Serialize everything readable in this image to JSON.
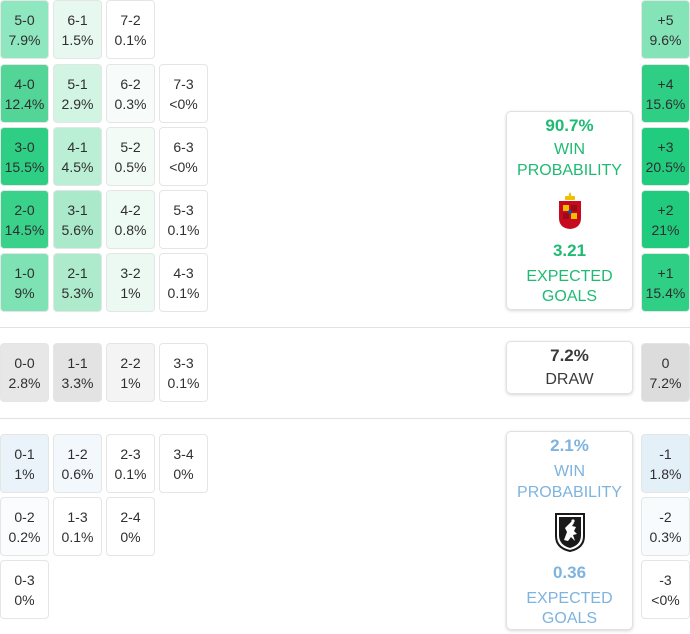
{
  "scorelines": {
    "home_wins": [
      {
        "score": "5-0",
        "prob": "7.9%",
        "bg": "#8ee7bf"
      },
      {
        "score": "6-1",
        "prob": "1.5%",
        "bg": "#e6f8ef"
      },
      {
        "score": "7-2",
        "prob": "0.1%",
        "bg": "#ffffff"
      },
      {
        "score": "4-0",
        "prob": "12.4%",
        "bg": "#52d597"
      },
      {
        "score": "5-1",
        "prob": "2.9%",
        "bg": "#d2f4e3"
      },
      {
        "score": "6-2",
        "prob": "0.3%",
        "bg": "#f7fcfa"
      },
      {
        "score": "7-3",
        "prob": "<0%",
        "bg": "#ffffff"
      },
      {
        "score": "3-0",
        "prob": "15.5%",
        "bg": "#2ecf85"
      },
      {
        "score": "4-1",
        "prob": "4.5%",
        "bg": "#baeed5"
      },
      {
        "score": "5-2",
        "prob": "0.5%",
        "bg": "#f3fbf7"
      },
      {
        "score": "6-3",
        "prob": "<0%",
        "bg": "#ffffff"
      },
      {
        "score": "2-0",
        "prob": "14.5%",
        "bg": "#3ad18b"
      },
      {
        "score": "3-1",
        "prob": "5.6%",
        "bg": "#aaeacb"
      },
      {
        "score": "4-2",
        "prob": "0.8%",
        "bg": "#eefaf4"
      },
      {
        "score": "5-3",
        "prob": "0.1%",
        "bg": "#ffffff"
      },
      {
        "score": "1-0",
        "prob": "9%",
        "bg": "#7fe2b4"
      },
      {
        "score": "2-1",
        "prob": "5.3%",
        "bg": "#aeebcd"
      },
      {
        "score": "3-2",
        "prob": "1%",
        "bg": "#ebf9f2"
      },
      {
        "score": "4-3",
        "prob": "0.1%",
        "bg": "#ffffff"
      }
    ],
    "draws": [
      {
        "score": "0-0",
        "prob": "2.8%",
        "bg": "#e7e7e7"
      },
      {
        "score": "1-1",
        "prob": "3.3%",
        "bg": "#e3e3e3"
      },
      {
        "score": "2-2",
        "prob": "1%",
        "bg": "#f4f4f4"
      },
      {
        "score": "3-3",
        "prob": "0.1%",
        "bg": "#ffffff"
      }
    ],
    "away_wins": [
      {
        "score": "0-1",
        "prob": "1%",
        "bg": "#eaf3fa"
      },
      {
        "score": "1-2",
        "prob": "0.6%",
        "bg": "#f3f8fc"
      },
      {
        "score": "2-3",
        "prob": "0.1%",
        "bg": "#ffffff"
      },
      {
        "score": "3-4",
        "prob": "0%",
        "bg": "#ffffff"
      },
      {
        "score": "0-2",
        "prob": "0.2%",
        "bg": "#fafcfe"
      },
      {
        "score": "1-3",
        "prob": "0.1%",
        "bg": "#ffffff"
      },
      {
        "score": "2-4",
        "prob": "0%",
        "bg": "#ffffff"
      },
      {
        "score": "0-3",
        "prob": "0%",
        "bg": "#ffffff"
      }
    ]
  },
  "margins": [
    {
      "margin": "+5",
      "prob": "9.6%",
      "bg": "#84e4b8"
    },
    {
      "margin": "+4",
      "prob": "15.6%",
      "bg": "#2ecf85"
    },
    {
      "margin": "+3",
      "prob": "20.5%",
      "bg": "#22cc7e"
    },
    {
      "margin": "+2",
      "prob": "21%",
      "bg": "#20cb7d"
    },
    {
      "margin": "+1",
      "prob": "15.4%",
      "bg": "#2fcf86"
    },
    {
      "margin": "0",
      "prob": "7.2%",
      "bg": "#dcdcdc"
    },
    {
      "margin": "-1",
      "prob": "1.8%",
      "bg": "#e4f0f8"
    },
    {
      "margin": "-2",
      "prob": "0.3%",
      "bg": "#f8fbfd"
    },
    {
      "margin": "-3",
      "prob": "<0%",
      "bg": "#ffffff"
    }
  ],
  "home_card": {
    "win_pct": "90.7%",
    "win_line1": "WIN",
    "win_line2": "PROBABILITY",
    "xg": "3.21",
    "xg_line1": "EXPECTED",
    "xg_line2": "GOALS",
    "crest_icon": "spain-crest-icon"
  },
  "draw_card": {
    "pct": "7.2%",
    "label": "DRAW"
  },
  "away_card": {
    "win_pct": "2.1%",
    "win_line1": "WIN",
    "win_line2": "PROBABILITY",
    "xg": "0.36",
    "xg_line1": "EXPECTED",
    "xg_line2": "GOALS",
    "crest_icon": "georgia-crest-icon"
  },
  "colors": {
    "home_accent": "#1fba73",
    "away_accent": "#7eb3de",
    "draw": "#3a3a3a"
  }
}
